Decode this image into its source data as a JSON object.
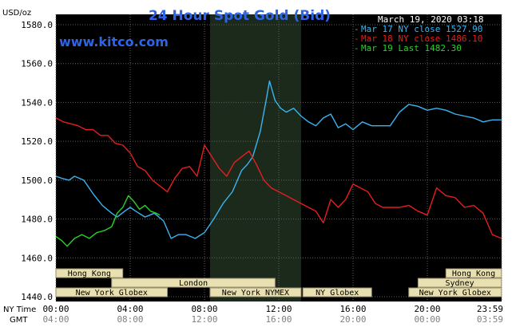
{
  "chart_data": {
    "type": "line",
    "title": "24 Hour Spot Gold (Bid)",
    "timestamp": "March 19, 2020 03:18",
    "brand": "www.kitco.com",
    "y_unit_label": "USD/oz",
    "ylim": [
      1440,
      1580
    ],
    "y_ticks": [
      "1580.0",
      "1560.0",
      "1540.0",
      "1520.0",
      "1500.0",
      "1480.0",
      "1460.0",
      "1440.0"
    ],
    "x_row_labels": {
      "ny": "NY Time",
      "gmt": "GMT"
    },
    "ny_ticks": [
      "00:00",
      "04:00",
      "08:00",
      "12:00",
      "16:00",
      "20:00",
      "23:59"
    ],
    "gmt_ticks": [
      "04:00",
      "08:00",
      "12:00",
      "16:00",
      "20:00",
      "00:00",
      "03:59"
    ],
    "grid": true,
    "legend_position": "top-right",
    "colors": {
      "background": "#000000",
      "grid": "#606060",
      "shade": "#1c2a1c",
      "title": "#2f64e6",
      "brand": "#2f64e6",
      "session_bg": "#e8e0b0",
      "session_border": "#9a9070",
      "axis_text": "#000000"
    },
    "sessions": [
      {
        "label": "Hong Kong",
        "row": 0,
        "start": 0.0,
        "end": 3.6
      },
      {
        "label": "Hong Kong",
        "row": 0,
        "start": 21.0,
        "end": 23.99
      },
      {
        "label": "London",
        "row": 1,
        "start": 3.0,
        "end": 11.8
      },
      {
        "label": "Sydney",
        "row": 1,
        "start": 19.5,
        "end": 23.99
      },
      {
        "label": "New York Globex",
        "row": 2,
        "start": 0.0,
        "end": 6.0
      },
      {
        "label": "New York NYMEX",
        "row": 2,
        "start": 8.3,
        "end": 13.2
      },
      {
        "label": "NY Globex",
        "row": 2,
        "start": 13.3,
        "end": 17.0
      },
      {
        "label": "New York Globex",
        "row": 2,
        "start": 19.0,
        "end": 23.99
      }
    ],
    "nymex_shade": [
      8.3,
      13.2
    ],
    "series": [
      {
        "name": "Mar 17 NY close 1527.90",
        "color": "#3ab4f0",
        "x": [
          0,
          0.3,
          0.7,
          1.0,
          1.5,
          2.0,
          2.5,
          3.0,
          3.3,
          3.7,
          4.0,
          4.3,
          4.8,
          5.3,
          5.8,
          6.2,
          6.6,
          7.0,
          7.5,
          8.0,
          8.5,
          9.0,
          9.5,
          10.0,
          10.3,
          10.6,
          11.0,
          11.3,
          11.5,
          11.8,
          12.1,
          12.4,
          12.8,
          13.2,
          13.6,
          14.0,
          14.4,
          14.8,
          15.2,
          15.6,
          16.0,
          16.5,
          17.0,
          17.5,
          18.0,
          18.5,
          19.0,
          19.5,
          20.0,
          20.5,
          21.0,
          21.5,
          22.0,
          22.5,
          23.0,
          23.5,
          23.99
        ],
        "y": [
          1502,
          1501,
          1500,
          1502,
          1500,
          1493,
          1487,
          1483,
          1481,
          1484,
          1486,
          1484,
          1481,
          1483,
          1479,
          1470,
          1472,
          1472,
          1470,
          1473,
          1480,
          1488,
          1494,
          1505,
          1508,
          1512,
          1525,
          1540,
          1551,
          1541,
          1537,
          1535,
          1537,
          1533,
          1530,
          1528,
          1532,
          1534,
          1527,
          1529,
          1526,
          1530,
          1528,
          1528,
          1528,
          1535,
          1539,
          1538,
          1536,
          1537,
          1536,
          1534,
          1533,
          1532,
          1530,
          1531,
          1531
        ]
      },
      {
        "name": "Mar 18 NY close 1486.10",
        "color": "#e61e1e",
        "x": [
          0,
          0.4,
          0.8,
          1.2,
          1.6,
          2.0,
          2.4,
          2.8,
          3.2,
          3.6,
          4.0,
          4.4,
          4.8,
          5.2,
          5.6,
          6.0,
          6.4,
          6.8,
          7.2,
          7.6,
          8.0,
          8.4,
          8.8,
          9.2,
          9.6,
          10.0,
          10.4,
          10.8,
          11.2,
          11.6,
          12.0,
          12.4,
          12.8,
          13.2,
          13.6,
          14.0,
          14.4,
          14.8,
          15.2,
          15.6,
          16.0,
          16.4,
          16.8,
          17.2,
          17.6,
          18.0,
          18.5,
          19.0,
          19.5,
          20.0,
          20.5,
          21.0,
          21.5,
          22.0,
          22.5,
          23.0,
          23.5,
          23.99
        ],
        "y": [
          1532,
          1530,
          1529,
          1528,
          1526,
          1526,
          1523,
          1523,
          1519,
          1518,
          1514,
          1507,
          1505,
          1500,
          1497,
          1494,
          1501,
          1506,
          1507,
          1502,
          1518,
          1512,
          1506,
          1502,
          1509,
          1512,
          1515,
          1508,
          1500,
          1496,
          1494,
          1492,
          1490,
          1488,
          1486,
          1484,
          1478,
          1490,
          1486,
          1490,
          1498,
          1496,
          1494,
          1488,
          1486,
          1486,
          1486,
          1487,
          1484,
          1482,
          1496,
          1492,
          1491,
          1486,
          1487,
          1483,
          1472,
          1470
        ]
      },
      {
        "name": "Mar 19 Last 1482.30",
        "color": "#28d228",
        "x": [
          0,
          0.3,
          0.6,
          1.0,
          1.4,
          1.8,
          2.2,
          2.6,
          3.0,
          3.3,
          3.6,
          3.9,
          4.2,
          4.5,
          4.8,
          5.1,
          5.4,
          5.6
        ],
        "y": [
          1471,
          1469,
          1466,
          1470,
          1472,
          1470,
          1473,
          1474,
          1476,
          1483,
          1486,
          1492,
          1489,
          1485,
          1487,
          1484,
          1483,
          1482
        ]
      }
    ]
  }
}
